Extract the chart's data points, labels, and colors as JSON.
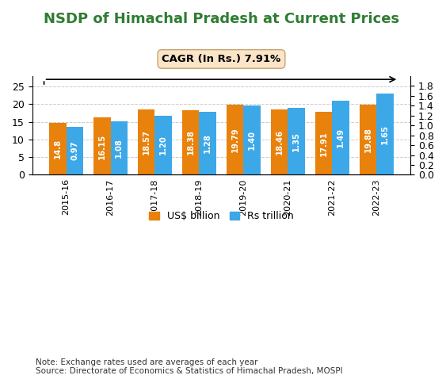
{
  "title": "NSDP of Himachal Pradesh at Current Prices",
  "title_color": "#2E7D32",
  "categories": [
    "2015-16",
    "2016-17",
    "2017-18",
    "2018-19",
    "2019-20",
    "2020-21",
    "2021-22",
    "2022-23"
  ],
  "usd_values": [
    14.8,
    16.15,
    18.57,
    18.38,
    19.79,
    18.46,
    17.91,
    19.88
  ],
  "rs_values": [
    0.97,
    1.08,
    1.2,
    1.28,
    1.4,
    1.35,
    1.49,
    1.65
  ],
  "usd_color": "#E8820C",
  "rs_color": "#3DA8E8",
  "usd_label": "US$ billion",
  "rs_label": "Rs trillion",
  "left_ylim": [
    0,
    28.0
  ],
  "right_ylim": [
    0,
    2.0
  ],
  "left_yticks": [
    0.0,
    5.0,
    10.0,
    15.0,
    20.0,
    25.0
  ],
  "right_yticks": [
    0.0,
    0.2,
    0.4,
    0.6,
    0.8,
    1.0,
    1.2,
    1.4,
    1.6,
    1.8
  ],
  "cagr_text": "CAGR (In Rs.) 7.91%",
  "note_text": "Note: Exchange rates used are averages of each year\nSource: Directorate of Economics & Statistics of Himachal Pradesh, MOSPI",
  "background_color": "#FFFFFF",
  "bar_width": 0.38,
  "title_fontsize": 13,
  "tick_fontsize": 9,
  "label_fontsize": 8,
  "value_fontsize": 7.2
}
